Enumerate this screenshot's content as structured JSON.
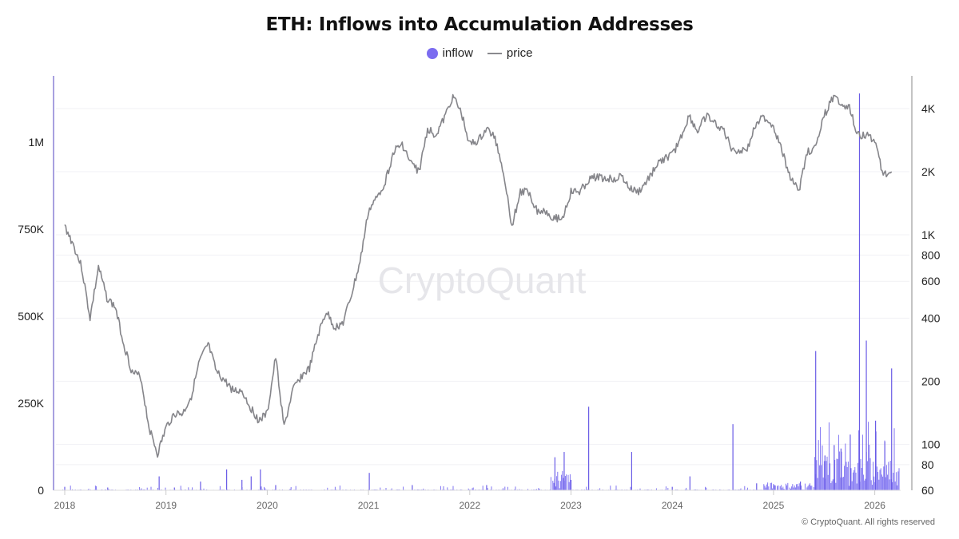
{
  "title": "ETH: Inflows into Accumulation Addresses",
  "legend": {
    "inflow_label": "inflow",
    "price_label": "price",
    "inflow_color": "#7b6cf0",
    "price_color": "#8a8a8e"
  },
  "watermark": "CryptoQuant",
  "copyright": "© CryptoQuant. All rights reserved",
  "chart_data": {
    "type": "bar+line",
    "title": "ETH: Inflows into Accumulation Addresses",
    "xlabel": "",
    "left_axis": {
      "label": "inflow",
      "ticks": [
        "0",
        "250K",
        "500K",
        "750K",
        "1M"
      ],
      "values": [
        0,
        250000,
        500000,
        750000,
        1000000
      ],
      "ylim": [
        0,
        1200000
      ]
    },
    "right_axis": {
      "label": "price",
      "scale": "log",
      "ticks": [
        "60",
        "80",
        "100",
        "200",
        "400",
        "600",
        "800",
        "1K",
        "2K",
        "4K"
      ],
      "values": [
        60,
        80,
        100,
        200,
        400,
        600,
        800,
        1000,
        2000,
        4000
      ]
    },
    "x_ticks": [
      "2018",
      "2019",
      "2020",
      "2021",
      "2022",
      "2023",
      "2024",
      "2025",
      "2026"
    ],
    "grid": true,
    "legend_position": "top-center",
    "series": [
      {
        "name": "price",
        "type": "line",
        "x": [
          "2018-01",
          "2018-02",
          "2018-03",
          "2018-04",
          "2018-05",
          "2018-06",
          "2018-07",
          "2018-08",
          "2018-09",
          "2018-10",
          "2018-11",
          "2018-12",
          "2019-01",
          "2019-02",
          "2019-03",
          "2019-04",
          "2019-05",
          "2019-06",
          "2019-07",
          "2019-08",
          "2019-09",
          "2019-10",
          "2019-11",
          "2019-12",
          "2020-01",
          "2020-02",
          "2020-03",
          "2020-04",
          "2020-05",
          "2020-06",
          "2020-07",
          "2020-08",
          "2020-09",
          "2020-10",
          "2020-11",
          "2020-12",
          "2021-01",
          "2021-02",
          "2021-03",
          "2021-04",
          "2021-05",
          "2021-06",
          "2021-07",
          "2021-08",
          "2021-09",
          "2021-10",
          "2021-11",
          "2021-12",
          "2022-01",
          "2022-02",
          "2022-03",
          "2022-04",
          "2022-05",
          "2022-06",
          "2022-07",
          "2022-08",
          "2022-09",
          "2022-10",
          "2022-11",
          "2022-12",
          "2023-01",
          "2023-02",
          "2023-03",
          "2023-04",
          "2023-05",
          "2023-06",
          "2023-07",
          "2023-08",
          "2023-09",
          "2023-10",
          "2023-11",
          "2023-12",
          "2024-01",
          "2024-02",
          "2024-03",
          "2024-04",
          "2024-05",
          "2024-06",
          "2024-07",
          "2024-08",
          "2024-09",
          "2024-10",
          "2024-11",
          "2024-12",
          "2025-01",
          "2025-02",
          "2025-03",
          "2025-04",
          "2025-05",
          "2025-06",
          "2025-07",
          "2025-08",
          "2025-09",
          "2025-10",
          "2025-11",
          "2025-12",
          "2026-01",
          "2026-02",
          "2026-03"
        ],
        "values": [
          1100,
          900,
          700,
          400,
          700,
          500,
          450,
          300,
          220,
          210,
          120,
          90,
          120,
          140,
          140,
          170,
          250,
          300,
          220,
          200,
          180,
          180,
          150,
          130,
          140,
          260,
          120,
          180,
          210,
          230,
          330,
          430,
          360,
          380,
          520,
          740,
          1300,
          1500,
          1800,
          2500,
          2700,
          2200,
          2000,
          3200,
          3000,
          3600,
          4600,
          3800,
          2700,
          2800,
          3200,
          2900,
          2000,
          1100,
          1600,
          1600,
          1300,
          1300,
          1200,
          1200,
          1600,
          1600,
          1800,
          1900,
          1850,
          1850,
          1900,
          1650,
          1600,
          1800,
          2100,
          2300,
          2400,
          2900,
          3700,
          3100,
          3700,
          3400,
          3200,
          2600,
          2500,
          2600,
          3500,
          3600,
          3300,
          2500,
          1900,
          1600,
          2500,
          2600,
          3700,
          4500,
          4300,
          4000,
          3000,
          3000,
          2800,
          1950,
          2000
        ]
      },
      {
        "name": "inflow",
        "type": "bar",
        "note": "mostly near-zero until 2022; notable spikes ~ 2023-03: 240K, 2024-08: 190K, 2025-06: 400K, 2025-11: 1.14M, 2025-12: 430K, 2026-03: 350K; dense activity from mid-2025 onward ~50K-150K",
        "x": [
          "2018-01",
          "2018-06",
          "2018-12",
          "2019-02",
          "2019-05",
          "2019-08",
          "2019-10",
          "2019-11",
          "2019-12",
          "2020-02",
          "2021-01",
          "2021-06",
          "2022-03",
          "2022-11",
          "2022-12",
          "2023-01",
          "2023-03",
          "2023-08",
          "2024-01",
          "2024-03",
          "2024-08",
          "2024-11",
          "2025-01",
          "2025-04",
          "2025-06",
          "2025-07",
          "2025-08",
          "2025-09",
          "2025-10",
          "2025-11",
          "2025-12",
          "2026-01",
          "2026-02",
          "2026-03"
        ],
        "values": [
          10000,
          8000,
          40000,
          8000,
          25000,
          60000,
          30000,
          40000,
          60000,
          15000,
          50000,
          15000,
          15000,
          95000,
          110000,
          30000,
          240000,
          110000,
          10000,
          40000,
          190000,
          20000,
          15000,
          25000,
          400000,
          100000,
          130000,
          120000,
          160000,
          1140000,
          430000,
          200000,
          140000,
          350000
        ]
      }
    ]
  }
}
